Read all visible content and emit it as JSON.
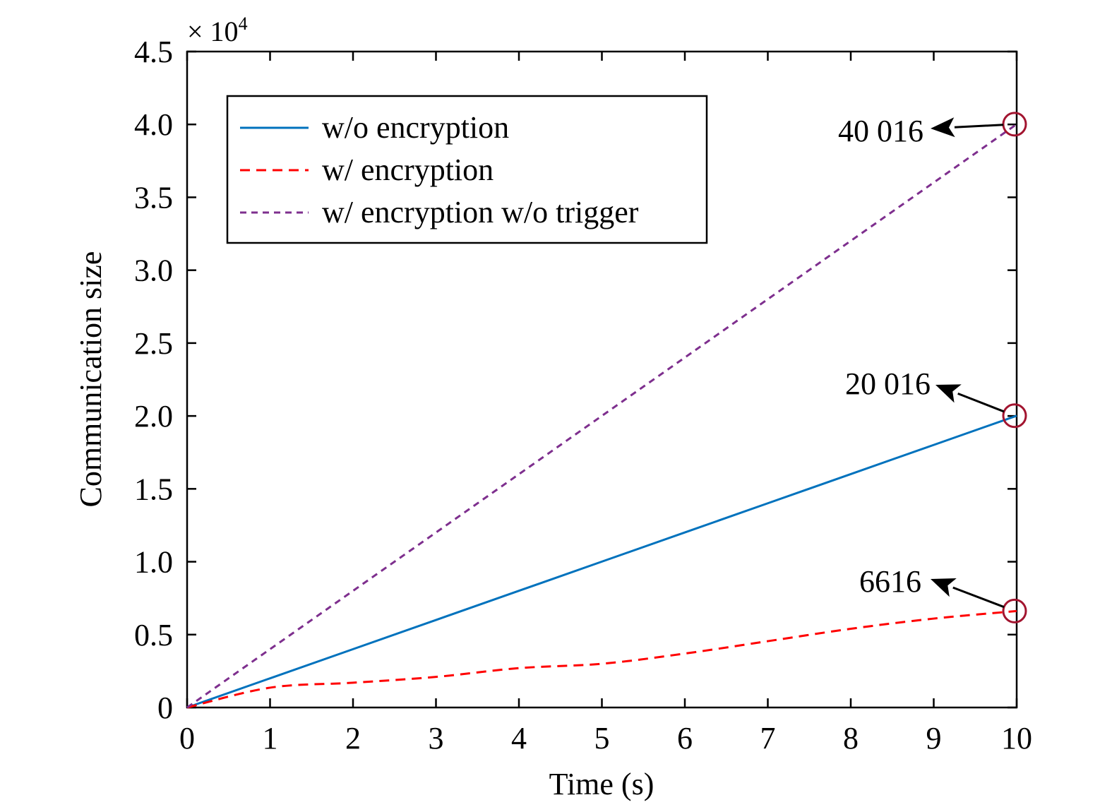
{
  "chart_data": {
    "type": "line",
    "title": "",
    "xlabel": "Time (s)",
    "ylabel": "Communication size",
    "y_multiplier_label": "× 10",
    "y_multiplier_exponent": "4",
    "xlim": [
      0,
      10
    ],
    "ylim": [
      0,
      45000
    ],
    "x_ticks": [
      "0",
      "1",
      "2",
      "3",
      "4",
      "5",
      "6",
      "7",
      "8",
      "9",
      "10"
    ],
    "y_ticks": [
      "0",
      "0.5",
      "1.0",
      "1.5",
      "2.0",
      "2.5",
      "3.0",
      "3.5",
      "4.0",
      "4.5"
    ],
    "grid": false,
    "legend_position": "top-left",
    "x": [
      0,
      1,
      2,
      3,
      4,
      5,
      6,
      7,
      8,
      9,
      10
    ],
    "series": [
      {
        "name": "w/o encryption",
        "color": "#0072bd",
        "style": "solid",
        "values": [
          0,
          2002,
          4003,
          6005,
          8006,
          10008,
          12010,
          14011,
          16013,
          18014,
          20016
        ]
      },
      {
        "name": "w/ encryption",
        "color": "#ff0000",
        "style": "dashed",
        "values": [
          0,
          1360,
          1700,
          2100,
          2700,
          3000,
          3700,
          4550,
          5400,
          6100,
          6616
        ]
      },
      {
        "name": "w/ encryption w/o trigger",
        "color": "#7e2f8e",
        "style": "dotted",
        "values": [
          0,
          4002,
          8003,
          12005,
          16006,
          20008,
          24010,
          28011,
          32013,
          36014,
          40016
        ]
      }
    ],
    "annotations": [
      {
        "text": "40 016",
        "x": 10,
        "y": 40016,
        "series": "w/ encryption w/o trigger"
      },
      {
        "text": "20 016",
        "x": 10,
        "y": 20016,
        "series": "w/o encryption"
      },
      {
        "text": "6616",
        "x": 10,
        "y": 6616,
        "series": "w/ encryption"
      }
    ],
    "marker_color": "#a2142f"
  }
}
